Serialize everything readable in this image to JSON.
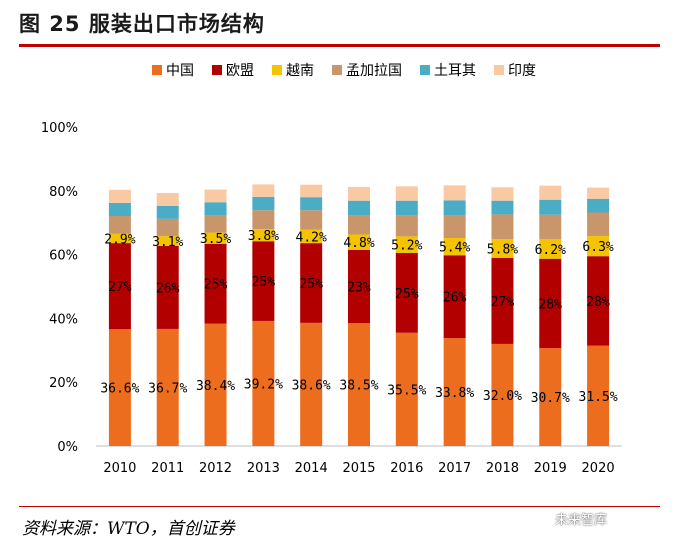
{
  "figure": {
    "title": "图 25 服装出口市场结构",
    "source": "资料来源：WTO，首创证券",
    "watermark": "未来智库"
  },
  "chart_data": {
    "type": "bar",
    "stacked": true,
    "categories": [
      "2010",
      "2011",
      "2012",
      "2013",
      "2014",
      "2015",
      "2016",
      "2017",
      "2018",
      "2019",
      "2020"
    ],
    "ylim": [
      0,
      100
    ],
    "yticks": [
      "0%",
      "20%",
      "40%",
      "60%",
      "80%",
      "100%"
    ],
    "grid": false,
    "legend_position": "top",
    "series": [
      {
        "name": "中国",
        "color": "#ed6d1e",
        "values": [
          36.6,
          36.7,
          38.4,
          39.2,
          38.6,
          38.5,
          35.5,
          33.8,
          32.0,
          30.7,
          31.5
        ],
        "labels": [
          "36.6%",
          "36.7%",
          "38.4%",
          "39.2%",
          "38.6%",
          "38.5%",
          "35.5%",
          "33.8%",
          "32.0%",
          "30.7%",
          "31.5%"
        ]
      },
      {
        "name": "欧盟",
        "color": "#b20000",
        "values": [
          27,
          26,
          25,
          25,
          25,
          23,
          25,
          26,
          27,
          28,
          28
        ],
        "labels": [
          "27%",
          "26%",
          "25%",
          "25%",
          "25%",
          "23%",
          "25%",
          "26%",
          "27%",
          "28%",
          "28%"
        ]
      },
      {
        "name": "越南",
        "color": "#f5c400",
        "values": [
          2.9,
          3.1,
          3.5,
          3.8,
          4.2,
          4.8,
          5.2,
          5.4,
          5.8,
          6.2,
          6.3
        ],
        "labels": [
          "2.9%",
          "3.1%",
          "3.5%",
          "3.8%",
          "4.2%",
          "4.8%",
          "5.2%",
          "5.4%",
          "5.8%",
          "6.2%",
          "6.3%"
        ]
      },
      {
        "name": "孟加拉国",
        "color": "#c9956a",
        "values": [
          5.6,
          5.4,
          5.5,
          5.9,
          6.1,
          6.1,
          6.6,
          7.2,
          7.8,
          7.6,
          7.4
        ]
      },
      {
        "name": "土耳其",
        "color": "#4bacc6",
        "values": [
          4.1,
          4.1,
          4.0,
          4.2,
          4.1,
          4.5,
          4.6,
          4.6,
          4.3,
          4.7,
          4.3
        ]
      },
      {
        "name": "印度",
        "color": "#f9c9a3",
        "values": [
          4.1,
          4.0,
          4.0,
          3.9,
          3.9,
          4.3,
          4.5,
          4.7,
          4.2,
          4.4,
          3.5
        ]
      }
    ]
  }
}
